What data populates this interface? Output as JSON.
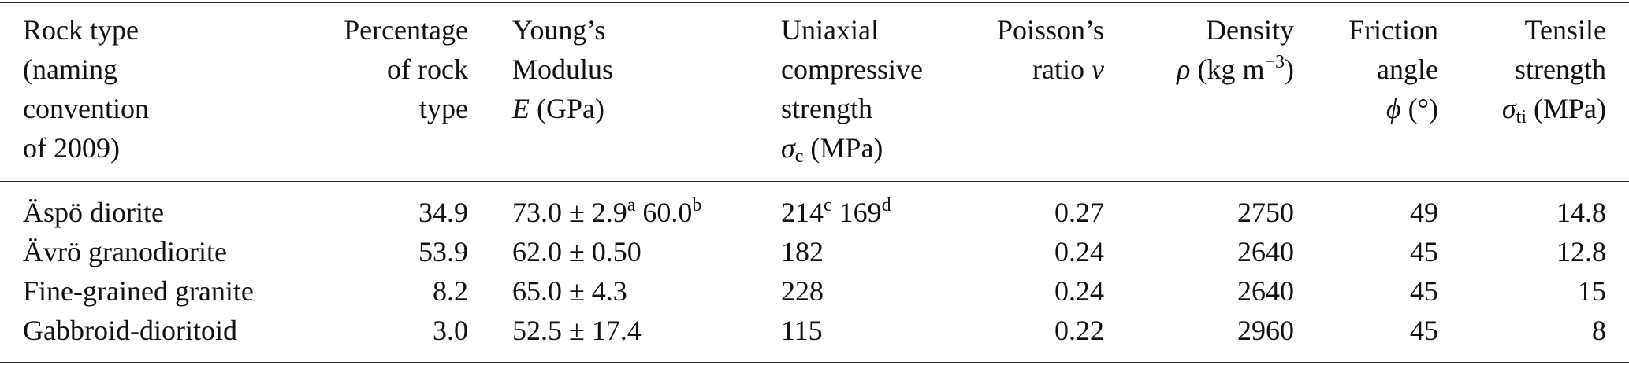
{
  "header": {
    "columns": [
      {
        "lines": [
          [
            "Rock type"
          ],
          [
            "(naming"
          ],
          [
            "convention"
          ],
          [
            "of 2009)"
          ]
        ]
      },
      {
        "lines": [
          [
            "Percentage"
          ],
          [
            "of rock"
          ],
          [
            "type"
          ]
        ]
      },
      {
        "lines": [
          [
            "Young’s"
          ],
          [
            "Modulus"
          ],
          [
            {
              "i": "E"
            },
            " (GPa)"
          ]
        ]
      },
      {
        "lines": [
          [
            "Uniaxial"
          ],
          [
            "compressive"
          ],
          [
            "strength"
          ],
          [
            {
              "i": "σ"
            },
            {
              "sub": "c"
            },
            " (MPa)"
          ]
        ]
      },
      {
        "lines": [
          [
            "Poisson’s"
          ],
          [
            "ratio ",
            {
              "i": "ν"
            }
          ]
        ]
      },
      {
        "lines": [
          [
            "Density"
          ],
          [
            {
              "i": "ρ"
            },
            " (kg m",
            {
              "sup": "−3"
            },
            ")"
          ]
        ]
      },
      {
        "lines": [
          [
            "Friction"
          ],
          [
            "angle"
          ],
          [
            {
              "i": "ϕ"
            },
            " (°)"
          ]
        ]
      },
      {
        "lines": [
          [
            "Tensile"
          ],
          [
            "strength"
          ],
          [
            {
              "i": "σ"
            },
            {
              "sub": "ti"
            },
            " (MPa)"
          ]
        ]
      }
    ]
  },
  "table": {
    "rows": [
      [
        [
          "Äspö diorite"
        ],
        [
          "34.9"
        ],
        [
          "73.0 ± 2.9",
          {
            "sup": "a"
          },
          " 60.0",
          {
            "sup": "b"
          }
        ],
        [
          "214",
          {
            "sup": "c"
          },
          " 169",
          {
            "sup": "d"
          }
        ],
        [
          "0.27"
        ],
        [
          "2750"
        ],
        [
          "49"
        ],
        [
          "14.8"
        ]
      ],
      [
        [
          "Ävrö granodiorite"
        ],
        [
          "53.9"
        ],
        [
          "62.0 ± 0.50"
        ],
        [
          "182"
        ],
        [
          "0.24"
        ],
        [
          "2640"
        ],
        [
          "45"
        ],
        [
          "12.8"
        ]
      ],
      [
        [
          "Fine-grained granite"
        ],
        [
          "8.2"
        ],
        [
          "65.0 ± 4.3"
        ],
        [
          "228"
        ],
        [
          "0.24"
        ],
        [
          "2640"
        ],
        [
          "45"
        ],
        [
          "15"
        ]
      ],
      [
        [
          "Gabbroid-dioritoid"
        ],
        [
          "3.0"
        ],
        [
          "52.5 ± 17.4"
        ],
        [
          "115"
        ],
        [
          "0.22"
        ],
        [
          "2960"
        ],
        [
          "45"
        ],
        [
          "8"
        ]
      ]
    ]
  }
}
